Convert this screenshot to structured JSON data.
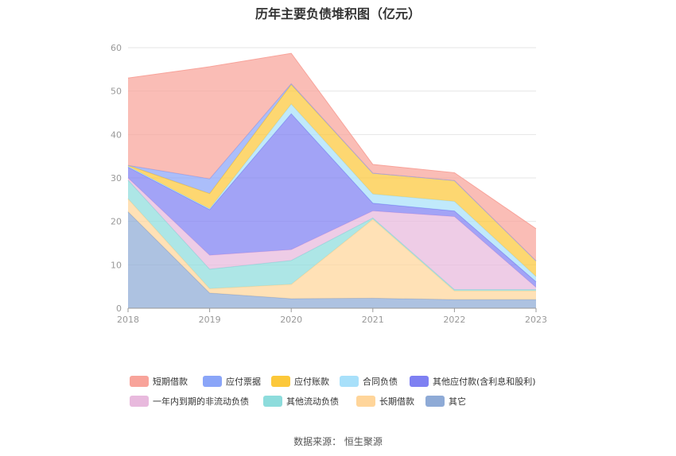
{
  "page": {
    "title": "历年主要负债堆积图（亿元）",
    "source": "数据来源：  恒生聚源"
  },
  "chart_data": {
    "type": "area",
    "stacked": true,
    "title": "历年主要负债堆积图（亿元）",
    "x": [
      "2018",
      "2019",
      "2020",
      "2021",
      "2022",
      "2023"
    ],
    "ylim": [
      0,
      60
    ],
    "yticks": [
      "0",
      "10",
      "20",
      "30",
      "40",
      "50",
      "60"
    ],
    "grid": true,
    "legend_position": "bottom",
    "series": [
      {
        "name": "其它",
        "color": "#8eaad6",
        "values": [
          22.2,
          3.5,
          2.2,
          2.3,
          2.0,
          2.0
        ]
      },
      {
        "name": "长期借款",
        "color": "#ffd59a",
        "values": [
          3.0,
          1.0,
          3.3,
          18.2,
          2.0,
          2.0
        ]
      },
      {
        "name": "其他流动负债",
        "color": "#8ddcdc",
        "values": [
          4.3,
          4.5,
          5.5,
          0.3,
          0.3,
          0.3
        ]
      },
      {
        "name": "一年内到期的非流动负债",
        "color": "#e8b9dd",
        "values": [
          0.5,
          3.2,
          2.5,
          1.6,
          16.8,
          0.5
        ]
      },
      {
        "name": "其他应付款(含利息和股利)",
        "color": "#7e80f2",
        "values": [
          2.5,
          10.5,
          31.3,
          1.8,
          1.3,
          1.3
        ]
      },
      {
        "name": "合同负债",
        "color": "#a8e0fa",
        "values": [
          0.2,
          0.2,
          2.2,
          2.1,
          2.2,
          1.2
        ]
      },
      {
        "name": "应付账款",
        "color": "#fcc83a",
        "values": [
          0.2,
          3.5,
          4.5,
          4.8,
          4.8,
          3.6
        ]
      },
      {
        "name": "应付票据",
        "color": "#8aa5f8",
        "values": [
          0.0,
          3.4,
          0.2,
          0.0,
          0.0,
          0.0
        ]
      },
      {
        "name": "短期借款",
        "color": "#f8a39a",
        "values": [
          20.1,
          25.8,
          7.0,
          2.0,
          1.8,
          7.4
        ]
      }
    ]
  }
}
